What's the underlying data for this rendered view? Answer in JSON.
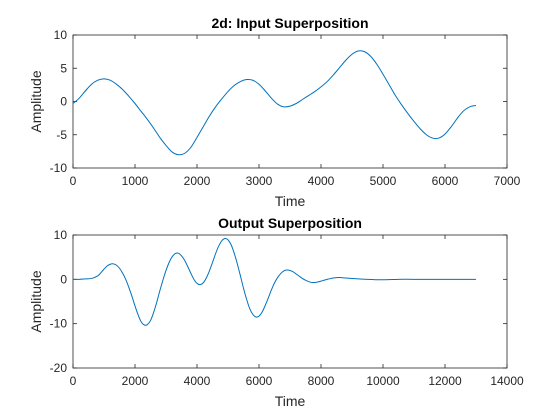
{
  "chart_data": [
    {
      "type": "line",
      "title": "2d: Input Superposition",
      "xlabel": "Time",
      "ylabel": "Amplitude",
      "xlim": [
        0,
        7000
      ],
      "ylim": [
        -10,
        10
      ],
      "xticks": [
        0,
        1000,
        2000,
        3000,
        4000,
        5000,
        6000,
        7000
      ],
      "yticks": [
        -10,
        -5,
        0,
        5,
        10
      ],
      "grid": false,
      "color": "#0072BD",
      "series": [
        {
          "x": [
            0,
            100,
            200,
            300,
            400,
            500,
            600,
            700,
            800,
            900,
            1000,
            1100,
            1200,
            1300,
            1400,
            1500,
            1600,
            1700,
            1800,
            1900,
            2000,
            2100,
            2200,
            2300,
            2400,
            2500,
            2600,
            2700,
            2800,
            2900,
            3000,
            3100,
            3200,
            3300,
            3400,
            3500,
            3600,
            3700,
            3800,
            3900,
            4000,
            4100,
            4200,
            4300,
            4400,
            4500,
            4600,
            4700,
            4800,
            4900,
            5000,
            5100,
            5200,
            5300,
            5400,
            5500,
            5600,
            5700,
            5800,
            5900,
            6000,
            6100,
            6200,
            6300,
            6400,
            6500
          ],
          "values": [
            -0.3,
            0.5,
            1.6,
            2.6,
            3.2,
            3.4,
            3.2,
            2.6,
            1.8,
            0.8,
            -0.3,
            -1.5,
            -2.7,
            -4.0,
            -5.4,
            -6.6,
            -7.6,
            -8.0,
            -7.8,
            -6.9,
            -5.4,
            -3.8,
            -2.2,
            -0.8,
            0.4,
            1.5,
            2.4,
            3.0,
            3.3,
            3.2,
            2.6,
            1.6,
            0.5,
            -0.4,
            -0.8,
            -0.7,
            -0.3,
            0.3,
            0.9,
            1.5,
            2.2,
            3.0,
            4.0,
            5.1,
            6.2,
            7.1,
            7.6,
            7.5,
            6.8,
            5.6,
            4.1,
            2.5,
            0.9,
            -0.5,
            -1.8,
            -3.0,
            -4.1,
            -5.0,
            -5.5,
            -5.5,
            -4.9,
            -3.8,
            -2.5,
            -1.4,
            -0.8,
            -0.6
          ]
        }
      ]
    },
    {
      "type": "line",
      "title": "Output Superposition",
      "xlabel": "Time",
      "ylabel": "Amplitude",
      "xlim": [
        0,
        14000
      ],
      "ylim": [
        -20,
        10
      ],
      "xticks": [
        0,
        2000,
        4000,
        6000,
        8000,
        10000,
        12000,
        14000
      ],
      "yticks": [
        -20,
        -10,
        0,
        10
      ],
      "grid": false,
      "color": "#0072BD",
      "series": [
        {
          "x": [
            0,
            200,
            400,
            600,
            800,
            900,
            1000,
            1100,
            1200,
            1300,
            1400,
            1500,
            1600,
            1700,
            1800,
            1900,
            2000,
            2100,
            2200,
            2300,
            2400,
            2500,
            2600,
            2700,
            2800,
            2900,
            3000,
            3100,
            3200,
            3300,
            3400,
            3500,
            3600,
            3700,
            3800,
            3900,
            4000,
            4100,
            4200,
            4300,
            4400,
            4500,
            4600,
            4700,
            4800,
            4900,
            5000,
            5100,
            5200,
            5300,
            5400,
            5500,
            5600,
            5700,
            5800,
            5900,
            6000,
            6100,
            6200,
            6300,
            6400,
            6500,
            6600,
            6700,
            6800,
            6900,
            7000,
            7100,
            7200,
            7300,
            7400,
            7500,
            7600,
            7700,
            7800,
            7900,
            8000,
            8200,
            8400,
            8600,
            8800,
            9000,
            9500,
            10000,
            10500,
            11000,
            12000,
            13000
          ],
          "values": [
            0,
            0,
            0.1,
            0.2,
            0.8,
            1.5,
            2.3,
            3.0,
            3.4,
            3.5,
            3.2,
            2.5,
            1.4,
            0.0,
            -1.8,
            -3.8,
            -6.0,
            -8.0,
            -9.6,
            -10.3,
            -10.2,
            -9.3,
            -7.5,
            -5.2,
            -2.6,
            -0.2,
            2.0,
            3.8,
            5.1,
            5.8,
            5.9,
            5.3,
            4.3,
            2.9,
            1.4,
            0.0,
            -0.9,
            -1.2,
            -0.8,
            0.3,
            1.9,
            3.8,
            5.8,
            7.5,
            8.7,
            9.2,
            8.9,
            7.8,
            5.9,
            3.5,
            0.8,
            -2.0,
            -4.5,
            -6.6,
            -7.9,
            -8.5,
            -8.3,
            -7.4,
            -5.9,
            -4.2,
            -2.4,
            -0.8,
            0.4,
            1.3,
            1.9,
            2.1,
            2.0,
            1.7,
            1.2,
            0.7,
            0.2,
            -0.2,
            -0.5,
            -0.7,
            -0.7,
            -0.6,
            -0.4,
            0.0,
            0.3,
            0.4,
            0.3,
            0.2,
            0.0,
            -0.1,
            0.0,
            0.0,
            0.0,
            0.0
          ]
        }
      ]
    }
  ]
}
